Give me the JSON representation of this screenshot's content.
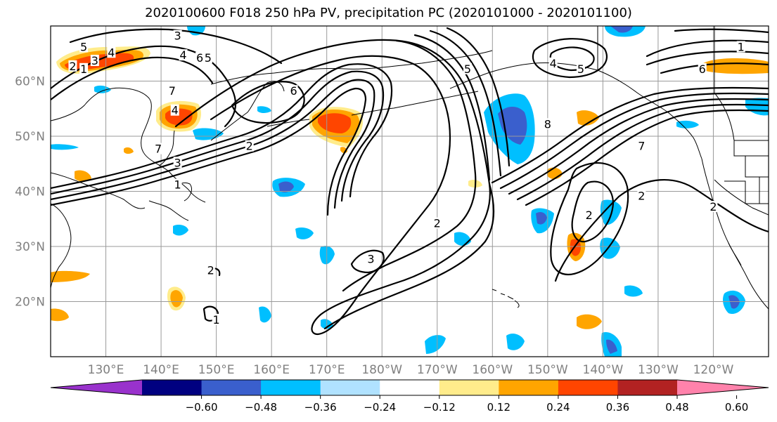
{
  "title": "2020100600 F018 250 hPa PV, precipitation PC (2020101000 - 2020101100)",
  "map": {
    "lon_range": [
      120,
      250
    ],
    "lat_range": [
      10,
      70
    ],
    "lat_ticks": [
      {
        "lat": 60,
        "label": "60°N"
      },
      {
        "lat": 50,
        "label": "50°N"
      },
      {
        "lat": 40,
        "label": "40°N"
      },
      {
        "lat": 30,
        "label": "30°N"
      },
      {
        "lat": 20,
        "label": "20°N"
      }
    ],
    "lon_ticks": [
      {
        "lon": 130,
        "label": "130°E"
      },
      {
        "lon": 140,
        "label": "140°E"
      },
      {
        "lon": 150,
        "label": "150°E"
      },
      {
        "lon": 160,
        "label": "160°E"
      },
      {
        "lon": 170,
        "label": "170°E"
      },
      {
        "lon": 180,
        "label": "180°W"
      },
      {
        "lon": 190,
        "label": "170°W"
      },
      {
        "lon": 200,
        "label": "160°W"
      },
      {
        "lon": 210,
        "label": "150°W"
      },
      {
        "lon": 220,
        "label": "140°W"
      },
      {
        "lon": 230,
        "label": "130°W"
      },
      {
        "lon": 240,
        "label": "120°W"
      }
    ],
    "contour_labels": [
      {
        "text": "5",
        "lon": 126,
        "lat": 66
      },
      {
        "text": "4",
        "lon": 131,
        "lat": 65
      },
      {
        "text": "3",
        "lon": 128,
        "lat": 63.5
      },
      {
        "text": "2",
        "lon": 124,
        "lat": 62.5
      },
      {
        "text": "1",
        "lon": 126,
        "lat": 62
      },
      {
        "text": "3",
        "lon": 143,
        "lat": 68
      },
      {
        "text": "4",
        "lon": 144,
        "lat": 64.5
      },
      {
        "text": "6",
        "lon": 147,
        "lat": 64
      },
      {
        "text": "5",
        "lon": 148.5,
        "lat": 64
      },
      {
        "text": "7",
        "lon": 142,
        "lat": 58
      },
      {
        "text": "4",
        "lon": 142.5,
        "lat": 54.5
      },
      {
        "text": "6",
        "lon": 164,
        "lat": 58
      },
      {
        "text": "7",
        "lon": 139.5,
        "lat": 47.5
      },
      {
        "text": "3",
        "lon": 143,
        "lat": 45
      },
      {
        "text": "2",
        "lon": 156,
        "lat": 48
      },
      {
        "text": "1",
        "lon": 143,
        "lat": 41
      },
      {
        "text": "5",
        "lon": 195.5,
        "lat": 62
      },
      {
        "text": "8",
        "lon": 210,
        "lat": 52
      },
      {
        "text": "4",
        "lon": 211,
        "lat": 63
      },
      {
        "text": "5",
        "lon": 216,
        "lat": 62
      },
      {
        "text": "1",
        "lon": 245,
        "lat": 66
      },
      {
        "text": "6",
        "lon": 238,
        "lat": 62
      },
      {
        "text": "7",
        "lon": 227,
        "lat": 48
      },
      {
        "text": "2",
        "lon": 227,
        "lat": 39
      },
      {
        "text": "2",
        "lon": 217.5,
        "lat": 35.5
      },
      {
        "text": "2",
        "lon": 240,
        "lat": 37
      },
      {
        "text": "2",
        "lon": 190,
        "lat": 34
      },
      {
        "text": "3",
        "lon": 178,
        "lat": 27.5
      },
      {
        "text": "2",
        "lon": 149,
        "lat": 25.5
      },
      {
        "text": "1",
        "lon": 150,
        "lat": 16.5
      }
    ]
  },
  "colorbar": {
    "colors": [
      "#9932cc",
      "#000080",
      "#3a5fcd",
      "#00bfff",
      "#b0e2ff",
      "#ffffff",
      "#ffec8b",
      "#ffa500",
      "#ff4500",
      "#b22222",
      "#ff82ab"
    ],
    "tick_labels": [
      "−0.60",
      "−0.48",
      "−0.36",
      "−0.24",
      "−0.12",
      "0.12",
      "0.24",
      "0.36",
      "0.48",
      "0.60"
    ]
  }
}
